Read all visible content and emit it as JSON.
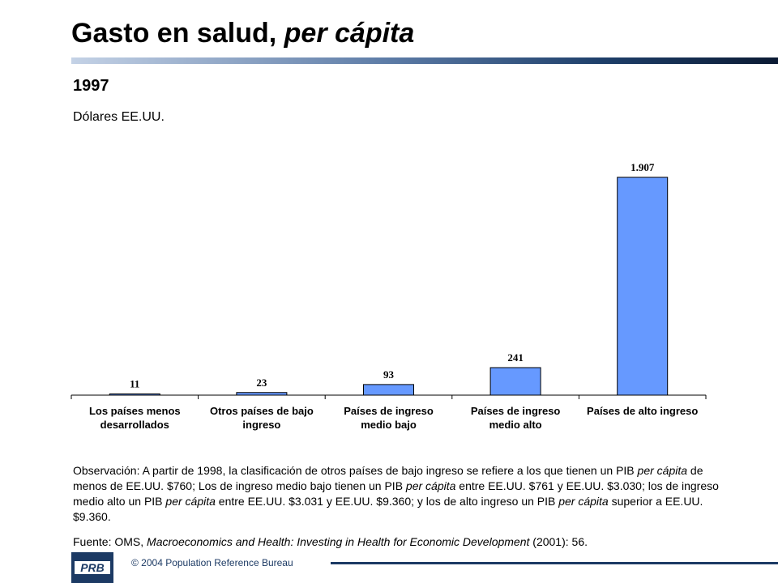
{
  "slide": {
    "title_main": "Gasto en salud,",
    "title_italic": "per cápita",
    "year": "1997",
    "units": "Dólares EE.UU.",
    "note": [
      {
        "text": "Observación: A partir de 1998, la clasificación de otros países de bajo ingreso se refiere a los que tienen un PIB ",
        "italic": false
      },
      {
        "text": "per cápita",
        "italic": true
      },
      {
        "text": " de menos de EE.UU. $760; Los de ingreso medio bajo tienen un PIB ",
        "italic": false
      },
      {
        "text": "per cápita",
        "italic": true
      },
      {
        "text": " entre EE.UU. $761 y EE.UU. $3.030; los de ingreso medio alto un PIB ",
        "italic": false
      },
      {
        "text": "per cápita",
        "italic": true
      },
      {
        "text": " entre EE.UU. $3.031 y EE.UU. $9.360; y los de alto ingreso un PIB ",
        "italic": false
      },
      {
        "text": "per cápita",
        "italic": true
      },
      {
        "text": " superior a  EE.UU. $9.360.",
        "italic": false
      }
    ],
    "source": [
      {
        "text": "Fuente: OMS, ",
        "italic": false
      },
      {
        "text": "Macroeconomics and Health: Investing in Health for Economic Development",
        "italic": true
      },
      {
        "text": " (2001): 56.",
        "italic": false
      }
    ]
  },
  "footer": {
    "logo_text": "PRB",
    "copyright": "© 2004  Population Reference Bureau"
  },
  "colors": {
    "bar_fill": "#6699ff",
    "bar_stroke": "#000000",
    "title_bar_dark": "#0b1a33",
    "brand": "#1c3a64"
  },
  "chart_data": {
    "type": "bar",
    "title": "",
    "xlabel": "",
    "ylabel": "",
    "categories": [
      [
        "Los países menos",
        "desarrollados"
      ],
      [
        "Otros países de bajo",
        "ingreso"
      ],
      [
        "Países de  ingreso",
        "medio bajo"
      ],
      [
        "Países de ingreso",
        "medio alto"
      ],
      [
        "Países de alto ingreso"
      ]
    ],
    "values": [
      11,
      23,
      93,
      241,
      1907
    ],
    "value_labels": [
      "11",
      "23",
      "93",
      "241",
      "1.907"
    ],
    "ylim": [
      0,
      1907
    ],
    "grid": false,
    "legend": "none"
  }
}
